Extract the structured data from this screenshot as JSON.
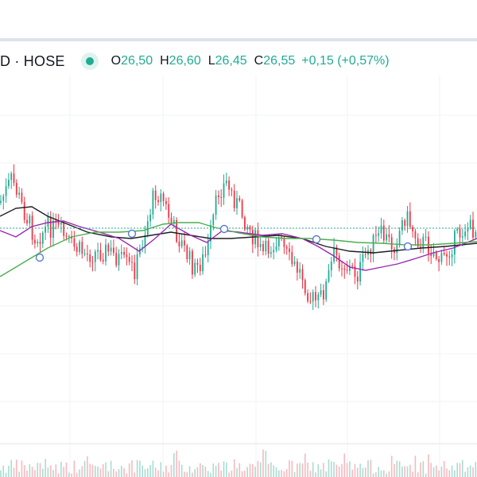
{
  "legend": {
    "symbol": "D · HOSE",
    "open_label": "O",
    "open": "26,50",
    "high_label": "H",
    "high": "26,60",
    "low_label": "L",
    "low": "26,45",
    "close_label": "C",
    "close": "26,55",
    "change": "+0,15 (+0,57%)"
  },
  "colors": {
    "up": "#22ab94",
    "down": "#f23645",
    "ma_black": "#1e1e24",
    "ma_purple": "#9c27b0",
    "ma_green": "#4caf50",
    "grid": "#f0f3fa",
    "text": "#131722"
  }
}
